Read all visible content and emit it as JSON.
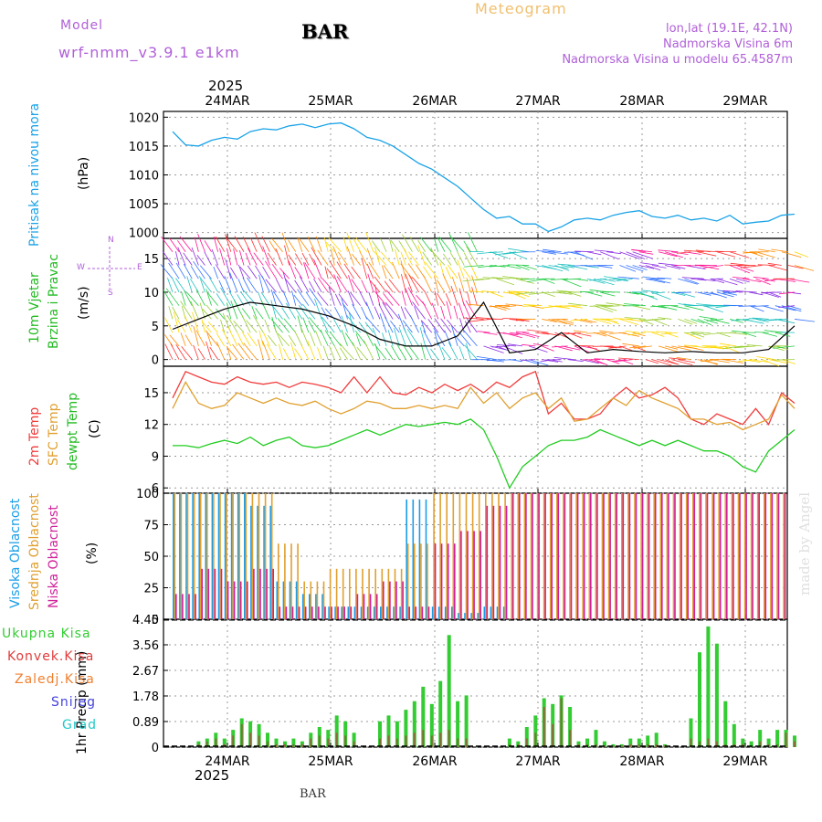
{
  "header": {
    "model_label": "Model",
    "model_name": "wrf-nmm_v3.9.1 e1km",
    "station": "BAR",
    "product": "Meteogram",
    "lonlat": "lon,lat (19.1E, 42.1N)",
    "elevation": "Nadmorska Visina 6m",
    "model_elevation": "Nadmorska Visina u modelu 65.4587m",
    "footer_station": "BAR",
    "watermark": "made by Angel"
  },
  "time_axis": {
    "year": "2025",
    "days": [
      "24MAR",
      "25MAR",
      "26MAR",
      "27MAR",
      "28MAR",
      "29MAR"
    ]
  },
  "colors": {
    "pressure": "#1aa3e8",
    "temp2m": "#f03c3c",
    "sfc_temp": "#e0a030",
    "dewpt": "#22cc22",
    "high_cloud": "#1a9de8",
    "mid_cloud": "#e0a030",
    "low_cloud": "#d0209a",
    "total_precip": "#33cc33",
    "conv_precip": "#e03c3c",
    "frozen_precip": "#f08030",
    "snow": "#4444dd",
    "hail": "#22c8c8",
    "panel_labels_purple": "#b060d8"
  },
  "chart_data": [
    {
      "type": "line",
      "panel": "pressure",
      "ylabels": [
        "Pritisak na nivou mora",
        "(hPa)"
      ],
      "ylim": [
        999,
        1021
      ],
      "yticks": [
        1000,
        1005,
        1010,
        1015,
        1020
      ],
      "grid": true,
      "x_hours": [
        0,
        3,
        6,
        9,
        12,
        15,
        18,
        21,
        24,
        27,
        30,
        33,
        36,
        39,
        42,
        45,
        48,
        51,
        54,
        57,
        60,
        63,
        66,
        69,
        72,
        75,
        78,
        81,
        84,
        87,
        90,
        93,
        96,
        99,
        102,
        105,
        108,
        111,
        114,
        117,
        120,
        123,
        126,
        129,
        132,
        135,
        138,
        141,
        144
      ],
      "series": [
        {
          "name": "MSLP",
          "values": [
            1017.5,
            1015.2,
            1015.0,
            1016.0,
            1016.5,
            1016.2,
            1017.5,
            1018.0,
            1017.8,
            1018.5,
            1018.8,
            1018.2,
            1018.8,
            1019.0,
            1018.0,
            1016.5,
            1016.0,
            1015.0,
            1013.5,
            1012.0,
            1011.0,
            1009.5,
            1008.0,
            1006.0,
            1004.0,
            1002.5,
            1002.8,
            1001.5,
            1001.5,
            1000.2,
            1001.0,
            1002.2,
            1002.5,
            1002.2,
            1003.0,
            1003.5,
            1003.8,
            1002.8,
            1002.5,
            1003.0,
            1002.2,
            1002.5,
            1002.0,
            1003.0,
            1001.5,
            1001.8,
            1002.0,
            1003.0,
            1003.2
          ]
        }
      ]
    },
    {
      "type": "line",
      "panel": "wind",
      "ylabels": [
        "10m Vjetar",
        "Brzina i Pravac",
        "(m/s)"
      ],
      "compass": {
        "north": "N",
        "south": "S",
        "west": "W",
        "east": "E"
      },
      "ylim": [
        -1,
        18
      ],
      "yticks": [
        0,
        5,
        10,
        15
      ],
      "grid": true,
      "x_hours": [
        0,
        6,
        12,
        18,
        24,
        30,
        36,
        42,
        48,
        54,
        60,
        66,
        72,
        78,
        84,
        90,
        96,
        102,
        108,
        114,
        120,
        126,
        132,
        138,
        144
      ],
      "series": [
        {
          "name": "wind speed",
          "values": [
            4.5,
            6.0,
            7.5,
            8.5,
            8.0,
            7.5,
            6.5,
            5.0,
            3.0,
            2.0,
            2.0,
            3.5,
            8.5,
            1.0,
            1.5,
            4.0,
            1.0,
            1.5,
            1.2,
            1.0,
            1.2,
            1.0,
            1.0,
            1.5,
            5.0
          ]
        }
      ]
    },
    {
      "type": "line",
      "panel": "temperature",
      "ylabels": [
        "2m Temp",
        "SFC Temp",
        "dewpt Temp",
        "(C)"
      ],
      "ylim": [
        5.5,
        17.5
      ],
      "yticks": [
        6,
        9,
        12,
        15
      ],
      "grid": true,
      "x_hours": [
        0,
        3,
        6,
        9,
        12,
        15,
        18,
        21,
        24,
        27,
        30,
        33,
        36,
        39,
        42,
        45,
        48,
        51,
        54,
        57,
        60,
        63,
        66,
        69,
        72,
        75,
        78,
        81,
        84,
        87,
        90,
        93,
        96,
        99,
        102,
        105,
        108,
        111,
        114,
        117,
        120,
        123,
        126,
        129,
        132,
        135,
        138,
        141,
        144
      ],
      "series": [
        {
          "name": "2m Temp",
          "values": [
            14.5,
            17.0,
            16.5,
            16.0,
            15.8,
            16.5,
            16.0,
            15.8,
            16.0,
            15.5,
            16.0,
            15.8,
            15.5,
            15.0,
            16.5,
            15.0,
            16.5,
            15.0,
            14.8,
            15.5,
            15.0,
            15.8,
            15.2,
            15.8,
            15.0,
            16.0,
            15.5,
            16.5,
            17.0,
            13.0,
            14.0,
            12.5,
            12.5,
            13.0,
            14.5,
            15.5,
            14.5,
            14.8,
            15.5,
            14.5,
            12.5,
            12.0,
            13.0,
            12.5,
            12.0,
            13.5,
            12.0,
            15.0,
            14.0
          ]
        },
        {
          "name": "SFC Temp",
          "values": [
            13.5,
            16.0,
            14.0,
            13.5,
            13.8,
            15.0,
            14.5,
            14.0,
            14.5,
            14.0,
            13.8,
            14.2,
            13.5,
            13.0,
            13.5,
            14.2,
            14.0,
            13.5,
            13.5,
            13.8,
            13.5,
            13.8,
            13.5,
            15.5,
            14.0,
            15.0,
            13.5,
            14.5,
            15.0,
            13.5,
            14.5,
            12.3,
            12.5,
            13.5,
            14.5,
            13.8,
            15.2,
            14.5,
            14.0,
            13.5,
            12.5,
            12.5,
            12.0,
            12.2,
            11.5,
            12.0,
            12.5,
            14.8,
            13.5
          ]
        },
        {
          "name": "dewpt Temp",
          "values": [
            10.0,
            10.0,
            9.8,
            10.2,
            10.5,
            10.2,
            10.8,
            10.0,
            10.5,
            10.8,
            10.0,
            9.8,
            10.0,
            10.5,
            11.0,
            11.5,
            11.0,
            11.5,
            12.0,
            11.8,
            12.0,
            12.2,
            12.0,
            12.5,
            11.5,
            9.0,
            6.0,
            8.0,
            9.0,
            10.0,
            10.5,
            10.5,
            10.8,
            11.5,
            11.0,
            10.5,
            10.0,
            10.5,
            10.0,
            10.5,
            10.0,
            9.5,
            9.5,
            9.0,
            8.0,
            7.5,
            9.5,
            10.5,
            11.5
          ]
        }
      ]
    },
    {
      "type": "bar",
      "panel": "cloud_cover",
      "ylabels": [
        "Visoka Oblacnost",
        "Srednja Oblacnost",
        "Niska Oblacnost",
        "(%)"
      ],
      "ylim": [
        0,
        100
      ],
      "yticks": [
        0,
        25,
        50,
        75,
        100
      ],
      "grid": true,
      "x_hours": [
        0,
        6,
        12,
        18,
        24,
        30,
        36,
        42,
        48,
        54,
        60,
        66,
        72,
        78,
        84,
        90,
        96,
        102,
        108,
        114,
        120,
        126,
        132,
        138,
        144
      ],
      "series": [
        {
          "name": "Visoka Oblacnost",
          "values": [
            100,
            100,
            100,
            90,
            30,
            20,
            10,
            10,
            10,
            95,
            10,
            5,
            10,
            0,
            0,
            0,
            0,
            0,
            0,
            0,
            0,
            0,
            0,
            0,
            0
          ]
        },
        {
          "name": "Srednja Oblacnost",
          "values": [
            100,
            100,
            100,
            100,
            60,
            30,
            40,
            40,
            40,
            60,
            100,
            100,
            100,
            100,
            100,
            100,
            100,
            100,
            100,
            100,
            100,
            100,
            100,
            100,
            100
          ]
        },
        {
          "name": "Niska Oblacnost",
          "values": [
            20,
            40,
            30,
            40,
            10,
            10,
            10,
            20,
            30,
            10,
            60,
            70,
            90,
            100,
            100,
            100,
            100,
            100,
            100,
            100,
            100,
            100,
            100,
            100,
            100
          ]
        }
      ]
    },
    {
      "type": "bar",
      "panel": "precipitation",
      "ylabels": [
        "1hr Precip (mm)"
      ],
      "legend": [
        "Ukupna Kisa",
        "Konvek.Kisa",
        "Zaledj.Kisa",
        "Snijeg",
        "Grad"
      ],
      "ylim": [
        0,
        4.45
      ],
      "yticks": [
        "0",
        "0.89",
        "1.78",
        "2.67",
        "3.56",
        "4.45"
      ],
      "grid": true,
      "x_hours": [
        6,
        8,
        10,
        12,
        14,
        16,
        18,
        20,
        22,
        24,
        26,
        28,
        30,
        32,
        34,
        36,
        38,
        40,
        42,
        48,
        50,
        52,
        54,
        56,
        58,
        60,
        62,
        64,
        66,
        68,
        78,
        80,
        82,
        84,
        86,
        88,
        90,
        92,
        94,
        96,
        98,
        100,
        102,
        104,
        106,
        108,
        110,
        112,
        114,
        120,
        122,
        124,
        126,
        128,
        130,
        132,
        134,
        136,
        138,
        140,
        142,
        144
      ],
      "series": [
        {
          "name": "Ukupna Kisa",
          "values": [
            0.2,
            0.3,
            0.5,
            0.3,
            0.6,
            1.0,
            0.9,
            0.8,
            0.5,
            0.3,
            0.2,
            0.3,
            0.2,
            0.5,
            0.7,
            0.6,
            1.1,
            0.9,
            0.5,
            0.9,
            1.1,
            0.9,
            1.3,
            1.6,
            2.1,
            1.5,
            2.3,
            3.9,
            1.6,
            1.8,
            0.3,
            0.2,
            0.7,
            1.1,
            1.7,
            1.5,
            1.8,
            1.4,
            0.2,
            0.3,
            0.6,
            0.2,
            0.1,
            0.1,
            0.3,
            0.3,
            0.4,
            0.5,
            0.1,
            1.0,
            3.3,
            4.2,
            3.6,
            1.6,
            0.8,
            0.3,
            0.2,
            0.6,
            0.3,
            0.6,
            0.6,
            0.4
          ]
        },
        {
          "name": "Konvek.Kisa",
          "values": [
            0.1,
            0.2,
            0.3,
            0.1,
            0.4,
            0.8,
            0.5,
            0.4,
            0.2,
            0.1,
            0.1,
            0.1,
            0.1,
            0.3,
            0.4,
            0.3,
            0.5,
            0.4,
            0.2,
            0.3,
            0.4,
            0.3,
            0.4,
            0.5,
            0.6,
            0.4,
            0.5,
            0.6,
            0.3,
            0.3,
            0.1,
            0.1,
            0.3,
            0.5,
            1.4,
            0.8,
            1.7,
            0.6,
            0.1,
            0.1,
            0.1,
            0.05,
            0.05,
            0.05,
            0.1,
            0.1,
            0.1,
            0.1,
            0.05,
            0.3,
            0.2,
            0.3,
            0.2,
            0.1,
            0.1,
            0.1,
            0.05,
            0.2,
            0.1,
            0.1,
            0.5,
            0.2
          ]
        }
      ]
    }
  ]
}
